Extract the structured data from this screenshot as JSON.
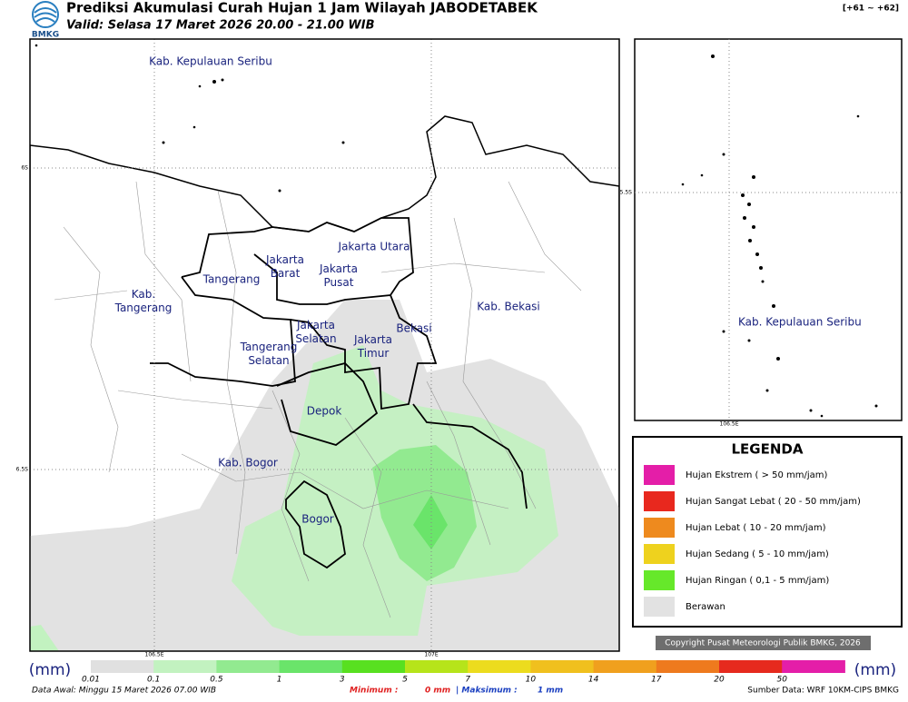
{
  "header": {
    "logo": "BMKG",
    "title": "Prediksi Akumulasi Curah Hujan 1 Jam Wilayah JABODETABEK",
    "valid": "Valid: Selasa 17 Maret 2026 20.00 - 21.00 WIB",
    "range": "[+61 ~ +62]"
  },
  "map": {
    "labels": [
      [
        "Kab. Kepulauan Seribu"
      ],
      [
        "Jakarta Utara"
      ],
      [
        "Jakarta",
        "Barat"
      ],
      [
        "Jakarta",
        "Pusat"
      ],
      [
        "Tangerang"
      ],
      [
        "Kab.",
        "Tangerang"
      ],
      [
        "Kab. Bekasi"
      ],
      [
        "Bekasi"
      ],
      [
        "Jakarta",
        "Selatan"
      ],
      [
        "Jakarta",
        "Timur"
      ],
      [
        "Tangerang",
        "Selatan"
      ],
      [
        "Depok"
      ],
      [
        "Kab. Bogor"
      ],
      [
        "Bogor"
      ]
    ],
    "grid": {
      "lat": [
        "6S",
        "6.5S"
      ],
      "lon": [
        "106.5E",
        "107E"
      ]
    }
  },
  "inset": {
    "label": "Kab. Kepulauan Seribu",
    "lat": "5.5S",
    "lon": "106.5E"
  },
  "legend": {
    "title": "LEGENDA",
    "items": [
      {
        "label": "Hujan Ekstrem ( > 50 mm/jam)",
        "color": "#e41ea8"
      },
      {
        "label": "Hujan Sangat Lebat ( 20 - 50 mm/jam)",
        "color": "#e8281e"
      },
      {
        "label": "Hujan Lebat ( 10 - 20 mm/jam)",
        "color": "#ee8a1e"
      },
      {
        "label": "Hujan Sedang ( 5 - 10 mm/jam)",
        "color": "#eed21e"
      },
      {
        "label": "Hujan Ringan ( 0,1 - 5 mm/jam)",
        "color": "#66e82a"
      },
      {
        "label": "Berawan",
        "color": "#e2e2e2"
      }
    ]
  },
  "copyright": "Copyright Pusat Meteorologi Publik BMKG, 2026",
  "colorbar": {
    "unit": "(mm)",
    "ticks": [
      "0.01",
      "0.1",
      "0.5",
      "1",
      "3",
      "5",
      "7",
      "10",
      "14",
      "17",
      "20",
      "50"
    ],
    "colors": [
      "#e0e0e0",
      "#c2f2c0",
      "#92ea90",
      "#6ae46a",
      "#58e020",
      "#b6e41a",
      "#ecdc1e",
      "#f0c01e",
      "#f0a01e",
      "#ee7a1e",
      "#e62a1e",
      "#e41ea8"
    ]
  },
  "footer": {
    "data_awal": "Data Awal: Minggu 15 Maret 2026 07.00 WIB",
    "min_label": "Minimum :",
    "min_value": "0 mm",
    "max_label": "| Maksimum :",
    "max_value": "1 mm",
    "source": "Sumber Data: WRF 10KM-CIPS BMKG"
  }
}
